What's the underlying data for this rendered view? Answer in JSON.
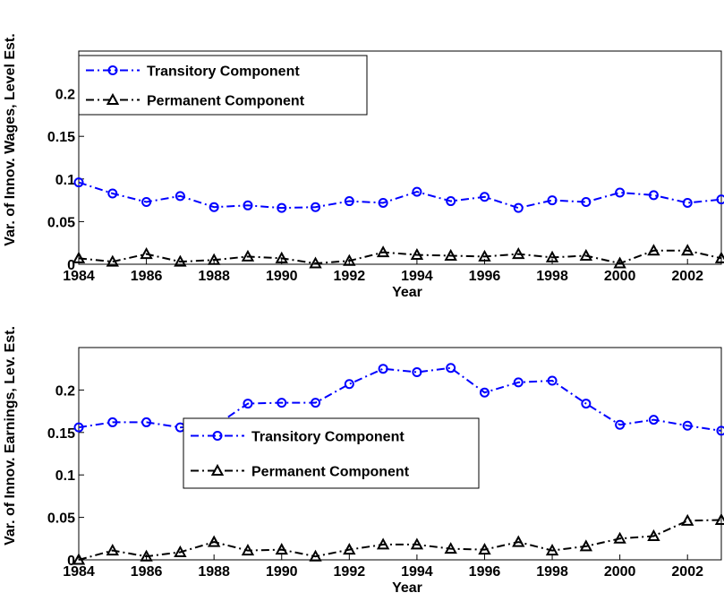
{
  "chart_data": [
    {
      "type": "line",
      "xlabel": "Year",
      "ylabel": "Var. of Innov. Wages, Level Est.",
      "x": [
        1984,
        1985,
        1986,
        1987,
        1988,
        1989,
        1990,
        1991,
        1992,
        1993,
        1994,
        1995,
        1996,
        1997,
        1998,
        1999,
        2000,
        2001,
        2002,
        2003
      ],
      "series": [
        {
          "name": "Transitory Component",
          "color": "#0000ff",
          "marker": "circle",
          "values": [
            0.096,
            0.083,
            0.073,
            0.08,
            0.067,
            0.069,
            0.066,
            0.067,
            0.074,
            0.072,
            0.085,
            0.074,
            0.079,
            0.066,
            0.075,
            0.073,
            0.084,
            0.081,
            0.072,
            0.076
          ]
        },
        {
          "name": "Permanent Component",
          "color": "#000000",
          "marker": "triangle",
          "values": [
            0.007,
            0.003,
            0.012,
            0.003,
            0.005,
            0.009,
            0.007,
            0.001,
            0.004,
            0.014,
            0.011,
            0.01,
            0.009,
            0.012,
            0.008,
            0.01,
            0.001,
            0.016,
            0.016,
            0.007
          ]
        }
      ],
      "xlim": [
        1984,
        2003
      ],
      "ylim": [
        0,
        0.25
      ],
      "xticks": [
        1984,
        1986,
        1988,
        1990,
        1992,
        1994,
        1996,
        1998,
        2000,
        2002
      ],
      "yticks": [
        0,
        0.05,
        0.1,
        0.15,
        0.2
      ],
      "legend": "upper left"
    },
    {
      "type": "line",
      "xlabel": "Year",
      "ylabel": "Var. of Innov. Earnings, Lev. Est.",
      "x": [
        1984,
        1985,
        1986,
        1987,
        1988,
        1989,
        1990,
        1991,
        1992,
        1993,
        1994,
        1995,
        1996,
        1997,
        1998,
        1999,
        2000,
        2001,
        2002,
        2003
      ],
      "series": [
        {
          "name": "Transitory Component",
          "color": "#0000ff",
          "marker": "circle",
          "values": [
            0.156,
            0.162,
            0.162,
            0.156,
            0.157,
            0.184,
            0.185,
            0.185,
            0.207,
            0.225,
            0.221,
            0.226,
            0.197,
            0.209,
            0.211,
            0.184,
            0.159,
            0.165,
            0.158,
            0.152
          ]
        },
        {
          "name": "Permanent Component",
          "color": "#000000",
          "marker": "triangle",
          "values": [
            0,
            0.011,
            0.004,
            0.009,
            0.021,
            0.011,
            0.012,
            0.004,
            0.012,
            0.018,
            0.018,
            0.013,
            0.012,
            0.021,
            0.011,
            0.016,
            0.025,
            0.028,
            0.046,
            0.047
          ]
        }
      ],
      "xlim": [
        1984,
        2003
      ],
      "ylim": [
        0,
        0.25
      ],
      "xticks": [
        1984,
        1986,
        1988,
        1990,
        1992,
        1994,
        1996,
        1998,
        2000,
        2002
      ],
      "yticks": [
        0,
        0.05,
        0.1,
        0.15,
        0.2
      ],
      "legend": "center"
    }
  ]
}
